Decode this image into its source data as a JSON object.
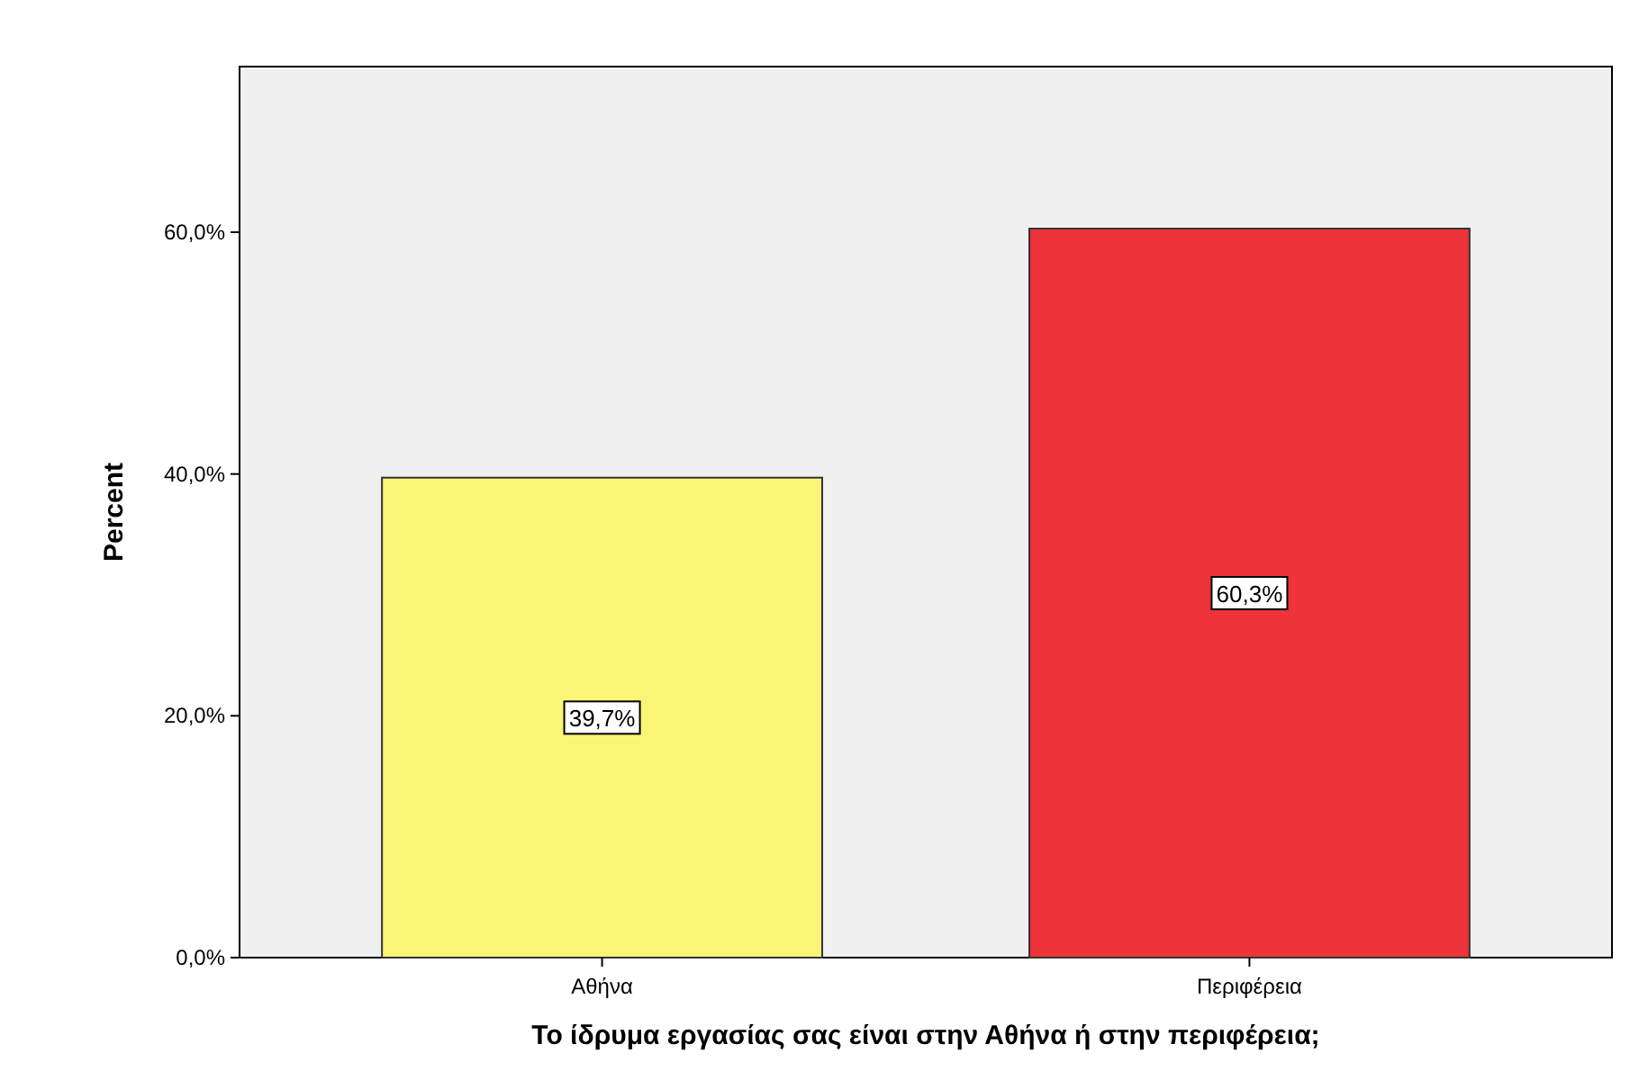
{
  "chart_data": {
    "type": "bar",
    "xlabel": "Το ίδρυμα εργασίας σας είναι στην Αθήνα ή στην περιφέρεια;",
    "ylabel": "Percent",
    "categories": [
      "Αθήνα",
      "Περιφέρεια"
    ],
    "values": [
      39.7,
      60.3
    ],
    "colors": [
      "#f9f577",
      "#ee333a"
    ],
    "value_labels": [
      "39,7%",
      "60,3%"
    ],
    "ylim": [
      0,
      73.7
    ],
    "yticks": [
      {
        "value": 0,
        "label": "0,0%"
      },
      {
        "value": 20,
        "label": "20,0%"
      },
      {
        "value": 40,
        "label": "40,0%"
      },
      {
        "value": 60,
        "label": "60,0%"
      }
    ],
    "grid": false
  }
}
